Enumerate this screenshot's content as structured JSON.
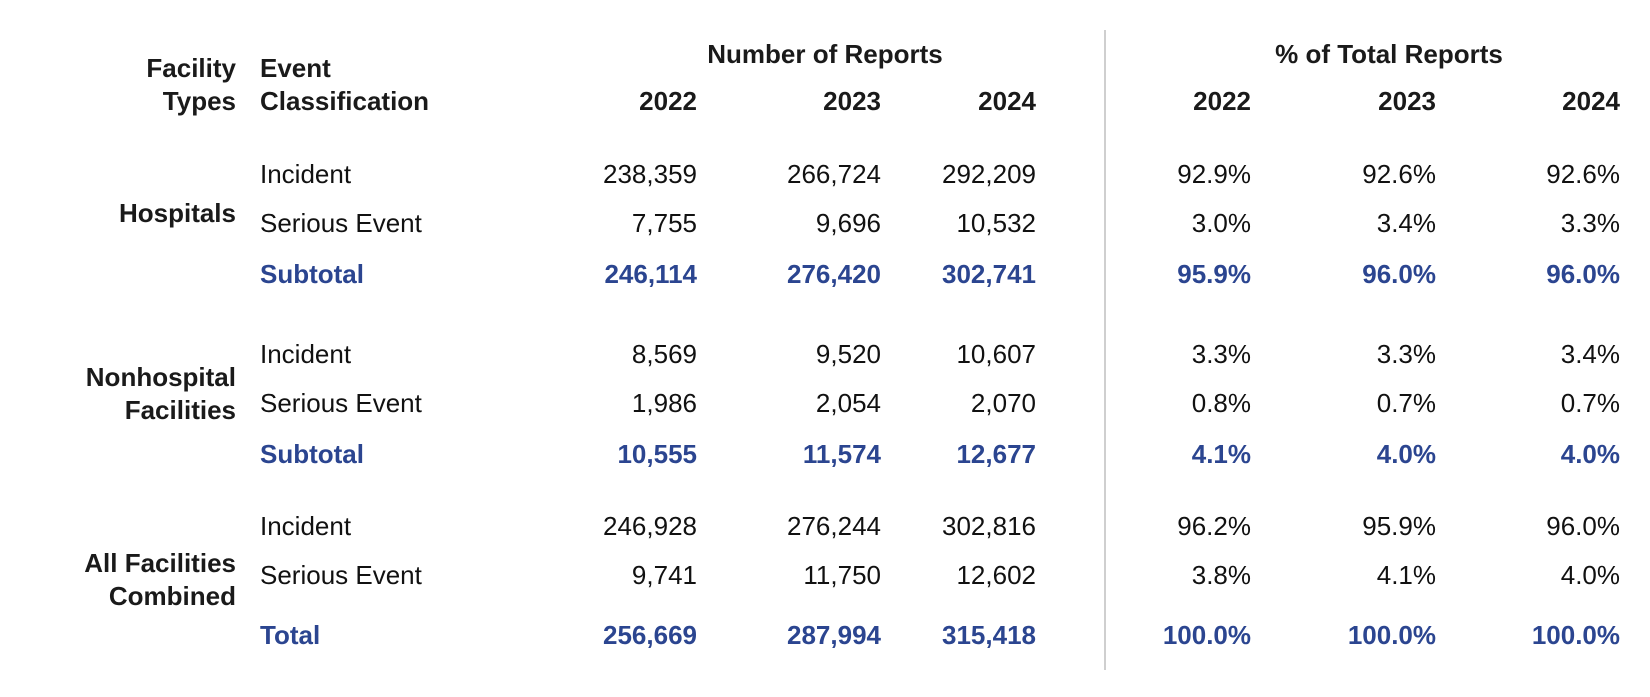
{
  "headers": {
    "facility_types": "Facility\nTypes",
    "event_classification": "Event\nClassification",
    "number_of_reports": "Number of Reports",
    "pct_of_total": "% of Total Reports",
    "years": [
      "2022",
      "2023",
      "2024"
    ]
  },
  "groups": [
    {
      "name": "Hospitals",
      "rows": [
        {
          "label": "Incident",
          "counts": [
            "238,359",
            "266,724",
            "292,209"
          ],
          "pcts": [
            "92.9%",
            "92.6%",
            "92.6%"
          ],
          "emphasis": false
        },
        {
          "label": "Serious Event",
          "counts": [
            "7,755",
            "9,696",
            "10,532"
          ],
          "pcts": [
            "3.0%",
            "3.4%",
            "3.3%"
          ],
          "emphasis": false
        },
        {
          "label": "Subtotal",
          "counts": [
            "246,114",
            "276,420",
            "302,741"
          ],
          "pcts": [
            "95.9%",
            "96.0%",
            "96.0%"
          ],
          "emphasis": true
        }
      ]
    },
    {
      "name": "Nonhospital\nFacilities",
      "rows": [
        {
          "label": "Incident",
          "counts": [
            "8,569",
            "9,520",
            "10,607"
          ],
          "pcts": [
            "3.3%",
            "3.3%",
            "3.4%"
          ],
          "emphasis": false
        },
        {
          "label": "Serious Event",
          "counts": [
            "1,986",
            "2,054",
            "2,070"
          ],
          "pcts": [
            "0.8%",
            "0.7%",
            "0.7%"
          ],
          "emphasis": false
        },
        {
          "label": "Subtotal",
          "counts": [
            "10,555",
            "11,574",
            "12,677"
          ],
          "pcts": [
            "4.1%",
            "4.0%",
            "4.0%"
          ],
          "emphasis": true
        }
      ]
    },
    {
      "name": "All Facilities\nCombined",
      "rows": [
        {
          "label": "Incident",
          "counts": [
            "246,928",
            "276,244",
            "302,816"
          ],
          "pcts": [
            "96.2%",
            "95.9%",
            "96.0%"
          ],
          "emphasis": false
        },
        {
          "label": "Serious Event",
          "counts": [
            "9,741",
            "11,750",
            "12,602"
          ],
          "pcts": [
            "3.8%",
            "4.1%",
            "4.0%"
          ],
          "emphasis": false
        },
        {
          "label": "Total",
          "counts": [
            "256,669",
            "287,994",
            "315,418"
          ],
          "pcts": [
            "100.0%",
            "100.0%",
            "100.0%"
          ],
          "emphasis": true
        }
      ]
    }
  ],
  "colors": {
    "emphasis": "#2b4590",
    "divider": "#cfcfcf"
  }
}
